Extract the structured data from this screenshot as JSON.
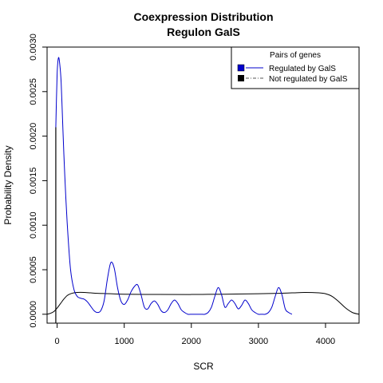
{
  "chart_data": {
    "type": "line",
    "title": "Coexpression Distribution",
    "subtitle": "Regulon GalS",
    "xlabel": "SCR",
    "ylabel": "Probability Density",
    "xlim": [
      -150,
      4500
    ],
    "ylim": [
      -0.0001,
      0.003
    ],
    "xticks": [
      0,
      1000,
      2000,
      3000,
      4000
    ],
    "xtick_labels": [
      "0",
      "1000",
      "2000",
      "3000",
      "4000"
    ],
    "yticks": [
      0.0,
      0.0005,
      0.001,
      0.0015,
      0.002,
      0.0025,
      0.003
    ],
    "ytick_labels": [
      "0.0000",
      "0.0005",
      "0.0010",
      "0.0015",
      "0.0020",
      "0.0025",
      "0.0030"
    ],
    "grid": false,
    "legend": {
      "title": "Pairs of genes",
      "placement": "top-right",
      "entries": [
        "Regulated by  GalS",
        "Not regulated by  GalS"
      ]
    },
    "series": [
      {
        "name": "Regulated by  GalS",
        "color": "#0000cc",
        "style": "solid",
        "x": [
          -20,
          0,
          20,
          40,
          60,
          80,
          100,
          130,
          160,
          200,
          250,
          300,
          350,
          400,
          450,
          500,
          550,
          600,
          650,
          700,
          750,
          800,
          850,
          900,
          950,
          1000,
          1050,
          1100,
          1150,
          1200,
          1250,
          1300,
          1350,
          1400,
          1450,
          1500,
          1550,
          1600,
          1650,
          1700,
          1750,
          1800,
          1850,
          1900,
          1950,
          2000,
          2050,
          2100,
          2150,
          2200,
          2250,
          2300,
          2350,
          2400,
          2450,
          2500,
          2550,
          2600,
          2650,
          2700,
          2750,
          2800,
          2850,
          2900,
          2950,
          3000,
          3050,
          3100,
          3150,
          3200,
          3250,
          3300,
          3350,
          3400,
          3450,
          3500
        ],
        "y": [
          0.0021,
          0.0027,
          0.00288,
          0.0028,
          0.0026,
          0.0022,
          0.0018,
          0.0013,
          0.0009,
          0.0005,
          0.00028,
          0.0002,
          0.00018,
          0.00017,
          0.00014,
          9e-05,
          4e-05,
          2e-05,
          4e-05,
          0.00015,
          0.0004,
          0.00058,
          0.00052,
          0.0003,
          0.00015,
          0.00011,
          0.00016,
          0.00025,
          0.00031,
          0.00033,
          0.00022,
          8e-05,
          6e-05,
          0.00012,
          0.00015,
          0.00011,
          4e-05,
          2e-05,
          5e-05,
          0.00012,
          0.00016,
          0.00012,
          5e-05,
          2e-05,
          0.0,
          0.0,
          0.0,
          0.0,
          0.0,
          0.0,
          2e-05,
          8e-05,
          0.0002,
          0.0003,
          0.00022,
          8e-05,
          0.00012,
          0.00016,
          0.00012,
          6e-05,
          0.0001,
          0.00016,
          0.00012,
          5e-05,
          2e-05,
          0.0,
          0.0,
          0.0,
          2e-05,
          8e-05,
          0.0002,
          0.0003,
          0.00022,
          6e-05,
          2e-05,
          0.0
        ]
      },
      {
        "name": "Not regulated by  GalS",
        "color": "#000000",
        "style": "solid",
        "x": [
          -150,
          -100,
          -50,
          0,
          50,
          100,
          150,
          200,
          250,
          300,
          400,
          500,
          600,
          800,
          1000,
          1500,
          2000,
          2500,
          3000,
          3300,
          3500,
          3700,
          3900,
          4000,
          4100,
          4200,
          4300,
          4400,
          4500
        ],
        "y": [
          0.0,
          1e-05,
          3e-05,
          7e-05,
          0.00012,
          0.00017,
          0.00021,
          0.00023,
          0.00024,
          0.000245,
          0.000245,
          0.00024,
          0.000235,
          0.00023,
          0.000225,
          0.000222,
          0.000222,
          0.000225,
          0.00023,
          0.000235,
          0.00024,
          0.000245,
          0.00024,
          0.00023,
          0.0002,
          0.00014,
          7e-05,
          2e-05,
          0.0
        ]
      }
    ]
  }
}
